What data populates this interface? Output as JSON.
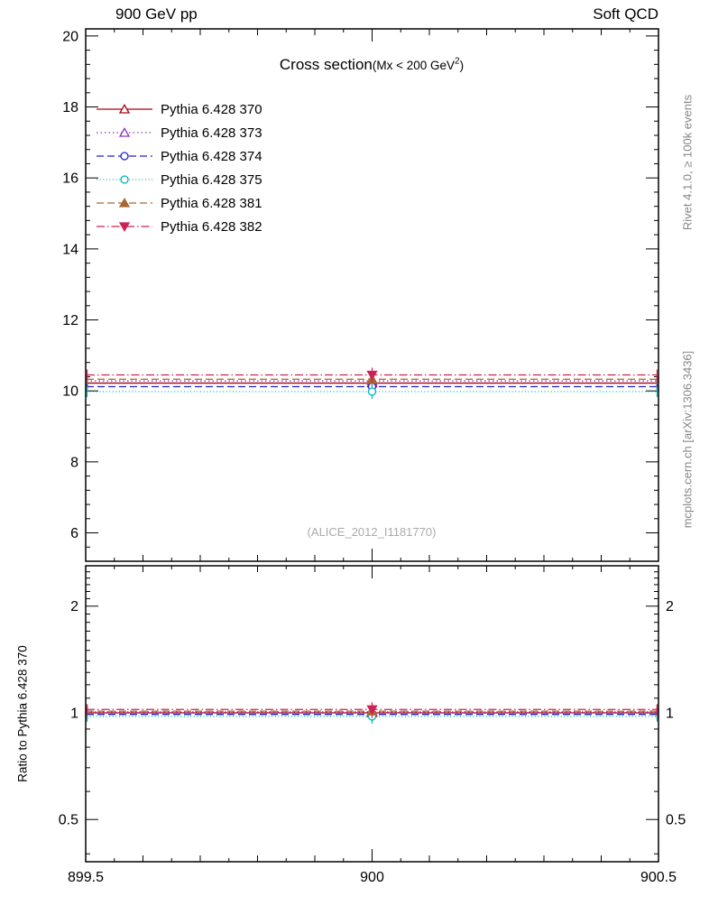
{
  "header": {
    "left": "900 GeV pp",
    "right": "Soft QCD"
  },
  "title": {
    "main": "Cross section",
    "paren_prefix": "(Mx < 200 GeV",
    "sup": "2",
    "paren_suffix": ")"
  },
  "watermark": "(ALICE_2012_I1181770)",
  "side_texts": {
    "top_right": "Rivet 4.1.0, ≥ 100k events",
    "bottom_right": "mcplots.cern.ch [arXiv:1306.3436]"
  },
  "ratio_ylabel": "Ratio to Pythia 6.428 370",
  "chart_data": {
    "type": "line",
    "title": "Cross section (Mx < 200 GeV^2)",
    "x": {
      "min": 899.5,
      "max": 900.5,
      "major_ticks": [
        899.5,
        900,
        900.5
      ],
      "tick_labels": [
        "899.5",
        "900",
        "900.5"
      ]
    },
    "main_panel": {
      "scale": "linear",
      "ylim": [
        5.2,
        20.2
      ],
      "major_ticks": [
        6,
        8,
        10,
        12,
        14,
        16,
        18,
        20
      ]
    },
    "ratio_panel": {
      "scale": "log",
      "ylim": [
        0.38,
        2.6
      ],
      "major_ticks": [
        0.5,
        1,
        2
      ],
      "tick_labels": [
        "0.5",
        "1",
        "2"
      ],
      "label": "Ratio to Pythia 6.428 370"
    },
    "bin": {
      "x_lo": 899.5,
      "x_hi": 900.5,
      "x_center": 900
    },
    "legend_position": "top-left",
    "series": [
      {
        "name": "Pythia 6.428 370",
        "color": "#aa0011",
        "dash": "solid",
        "marker": "triangle-open",
        "value": 10.22,
        "ratio": 1.0
      },
      {
        "name": "Pythia 6.428 373",
        "color": "#8833bb",
        "dash": "dotted",
        "marker": "triangle-open",
        "value": 10.28,
        "ratio": 1.006
      },
      {
        "name": "Pythia 6.428 374",
        "color": "#2222cc",
        "dash": "dashed",
        "marker": "circle-open",
        "value": 10.12,
        "ratio": 0.99
      },
      {
        "name": "Pythia 6.428 375",
        "color": "#00b7b7",
        "dash": "fine-dotted",
        "marker": "circle-open",
        "value": 9.98,
        "ratio": 0.977
      },
      {
        "name": "Pythia 6.428 381",
        "color": "#aa6633",
        "dash": "dashed",
        "marker": "triangle-filled",
        "value": 10.33,
        "ratio": 1.011
      },
      {
        "name": "Pythia 6.428 382",
        "color": "#cc2255",
        "dash": "dash-dot",
        "marker": "triangle-down-filled",
        "value": 10.45,
        "ratio": 1.022
      }
    ]
  }
}
